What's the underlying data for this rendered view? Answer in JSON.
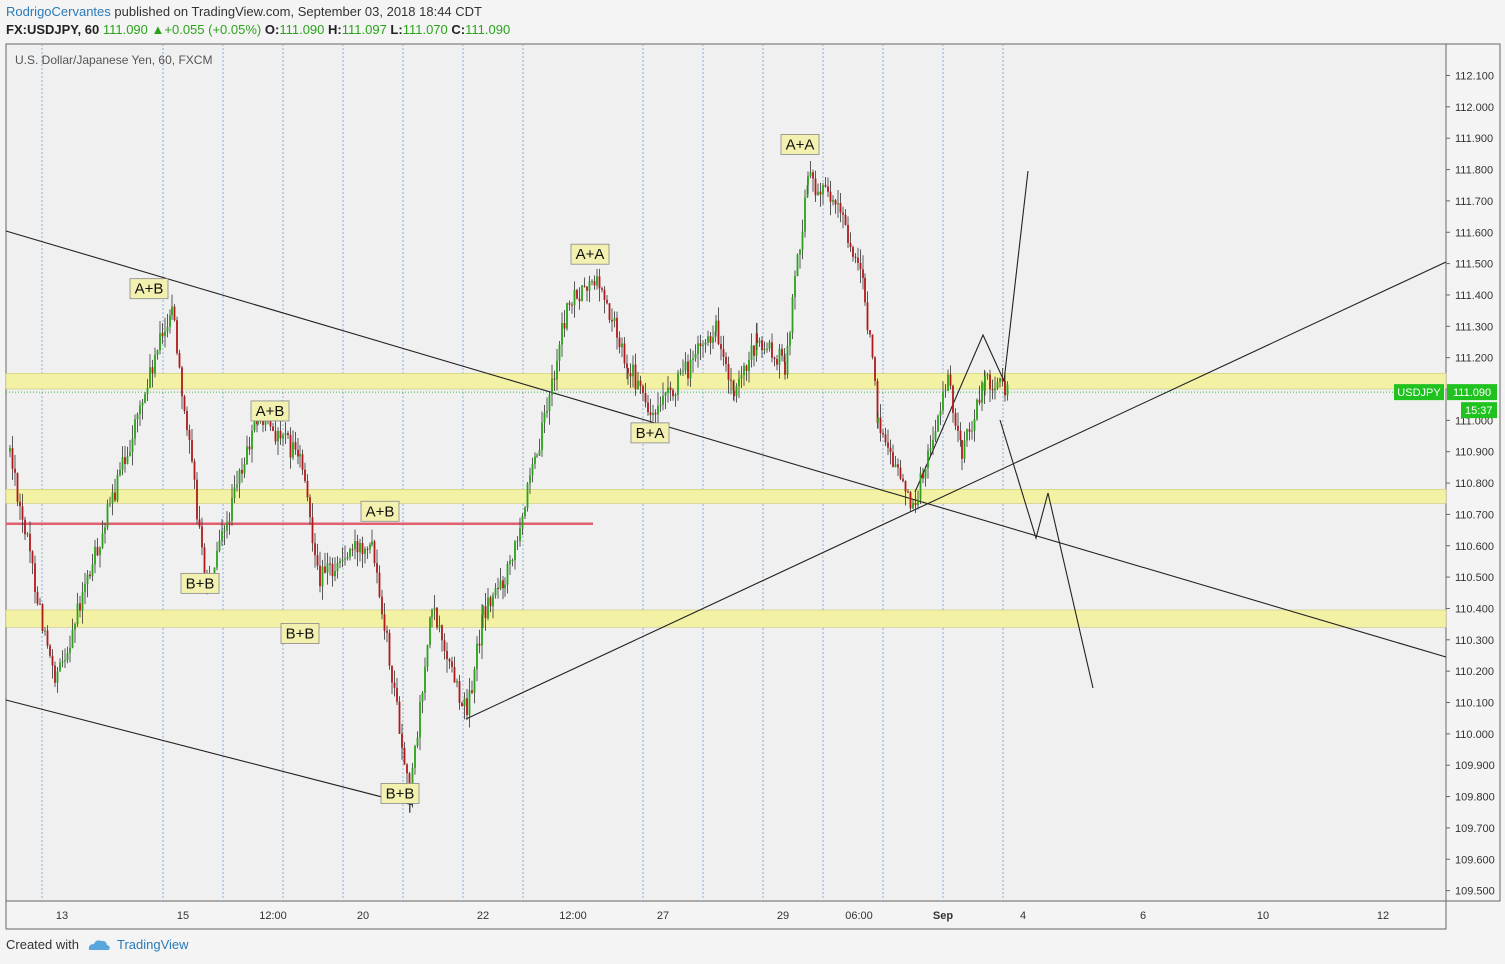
{
  "header": {
    "author": "RodrigoCervantes",
    "published": " published on TradingView.com, September 03, 2018 18:44 CDT",
    "symbol": "FX:USDJPY, 60",
    "last": "111.090",
    "change": "+0.055 (+0.05%)",
    "o_label": "O:",
    "o": "111.090",
    "h_label": "H:",
    "h": "111.097",
    "l_label": "L:",
    "l": "111.070",
    "c_label": "C:",
    "c": "111.090"
  },
  "footer": {
    "created_with": "Created with",
    "brand": "TradingView"
  },
  "colors": {
    "up": "#2aa31a",
    "down": "#b0191b",
    "zone": "#f3f1a4",
    "level": "#e06070",
    "accent": "#1fc21f"
  },
  "chart_data": {
    "type": "candlestick",
    "title": "U.S. Dollar/Japanese Yen, 60, FXCM",
    "ylim": [
      109.45,
      112.2
    ],
    "y_ticks": [
      "112.100",
      "112.000",
      "111.900",
      "111.800",
      "111.700",
      "111.600",
      "111.500",
      "111.400",
      "111.300",
      "111.200",
      "111.100",
      "111.000",
      "110.900",
      "110.800",
      "110.700",
      "110.600",
      "110.500",
      "110.400",
      "110.300",
      "110.200",
      "110.100",
      "110.000",
      "109.900",
      "109.800",
      "109.700",
      "109.600",
      "109.500"
    ],
    "x_ticks": [
      "13",
      "15",
      "12:00",
      "20",
      "22",
      "12:00",
      "27",
      "29",
      "06:00",
      "Sep",
      "4",
      "6",
      "10",
      "12"
    ],
    "price_label": {
      "symbol": "USDJPY",
      "price": "111.090",
      "countdown": "15:37"
    },
    "zones": [
      {
        "from": 111.1,
        "to": 111.15
      },
      {
        "from": 110.735,
        "to": 110.78
      },
      {
        "from": 110.34,
        "to": 110.395
      }
    ],
    "level_line": 110.67,
    "last_price": 111.09,
    "annotations": [
      {
        "text": "A+B",
        "price": 111.42
      },
      {
        "text": "A+B",
        "price": 111.03
      },
      {
        "text": "B+B",
        "price": 110.48
      },
      {
        "text": "B+B",
        "price": 110.32
      },
      {
        "text": "A+B",
        "price": 110.71
      },
      {
        "text": "B+B",
        "price": 109.81
      },
      {
        "text": "A+A",
        "price": 111.53
      },
      {
        "text": "B+A",
        "price": 110.96
      },
      {
        "text": "A+A",
        "price": 111.88
      }
    ],
    "path_points": [
      {
        "date": "Aug 10",
        "close": 110.9
      },
      {
        "date": "Aug 13",
        "close": 110.15
      },
      {
        "date": "Aug 15",
        "close": 111.37
      },
      {
        "date": "Aug 16",
        "close": 110.45
      },
      {
        "date": "Aug 17",
        "close": 111.02
      },
      {
        "date": "Aug 17",
        "close": 110.88
      },
      {
        "date": "Aug 20",
        "close": 110.5
      },
      {
        "date": "Aug 20",
        "close": 110.63
      },
      {
        "date": "Aug 21",
        "close": 109.8
      },
      {
        "date": "Aug 21",
        "close": 110.4
      },
      {
        "date": "Aug 22",
        "close": 110.06
      },
      {
        "date": "Aug 22",
        "close": 110.38
      },
      {
        "date": "Aug 23",
        "close": 110.5
      },
      {
        "date": "Aug 24",
        "close": 110.88
      },
      {
        "date": "Aug 24",
        "close": 111.36
      },
      {
        "date": "Aug 26",
        "close": 111.45
      },
      {
        "date": "Aug 27",
        "close": 111.18
      },
      {
        "date": "Aug 27",
        "close": 111.0
      },
      {
        "date": "Aug 28",
        "close": 111.3
      },
      {
        "date": "Aug 28",
        "close": 111.06
      },
      {
        "date": "Aug 28",
        "close": 111.25
      },
      {
        "date": "Aug 29",
        "close": 111.18
      },
      {
        "date": "Aug 29",
        "close": 111.78
      },
      {
        "date": "Aug 30",
        "close": 111.65
      },
      {
        "date": "Aug 30",
        "close": 111.4
      },
      {
        "date": "Aug 31",
        "close": 111.0
      },
      {
        "date": "Aug 31",
        "close": 110.72
      },
      {
        "date": "Aug 31",
        "close": 111.12
      },
      {
        "date": "Sep 2",
        "close": 110.9
      },
      {
        "date": "Sep 3",
        "close": 111.13
      },
      {
        "date": "Sep 3",
        "close": 111.09
      }
    ]
  }
}
